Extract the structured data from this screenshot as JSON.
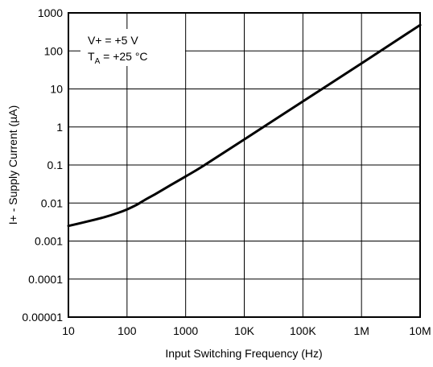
{
  "chart_data": {
    "type": "line",
    "title": "",
    "xlabel": "Input Switching Frequency (Hz)",
    "ylabel": "I+ - Supply Current (µA)",
    "x_scale": "log",
    "y_scale": "log",
    "xlim": [
      10,
      10000000
    ],
    "ylim": [
      1e-05,
      1000
    ],
    "x_tick_values": [
      10,
      100,
      1000,
      10000,
      100000,
      1000000,
      10000000
    ],
    "x_tick_labels": [
      "10",
      "100",
      "1000",
      "10K",
      "100K",
      "1M",
      "10M"
    ],
    "y_tick_values": [
      1e-05,
      0.0001,
      0.001,
      0.01,
      0.1,
      1,
      10,
      100,
      1000
    ],
    "y_tick_labels": [
      "0.00001",
      "0.0001",
      "0.001",
      "0.01",
      "0.1",
      "1",
      "10",
      "100",
      "1000"
    ],
    "grid": true,
    "annotations": {
      "line1": "V+ = +5 V",
      "line2_main": "T",
      "line2_sub": "A",
      "line2_rest": " = +25 °C"
    },
    "series": [
      {
        "x": [
          10,
          20,
          40,
          70,
          100,
          150,
          200,
          300,
          500,
          1000,
          2000,
          10000,
          100000,
          1000000,
          10000000
        ],
        "y": [
          0.0025,
          0.0032,
          0.0042,
          0.0055,
          0.0068,
          0.0092,
          0.012,
          0.017,
          0.027,
          0.05,
          0.095,
          0.47,
          4.7,
          47,
          480
        ]
      }
    ]
  }
}
